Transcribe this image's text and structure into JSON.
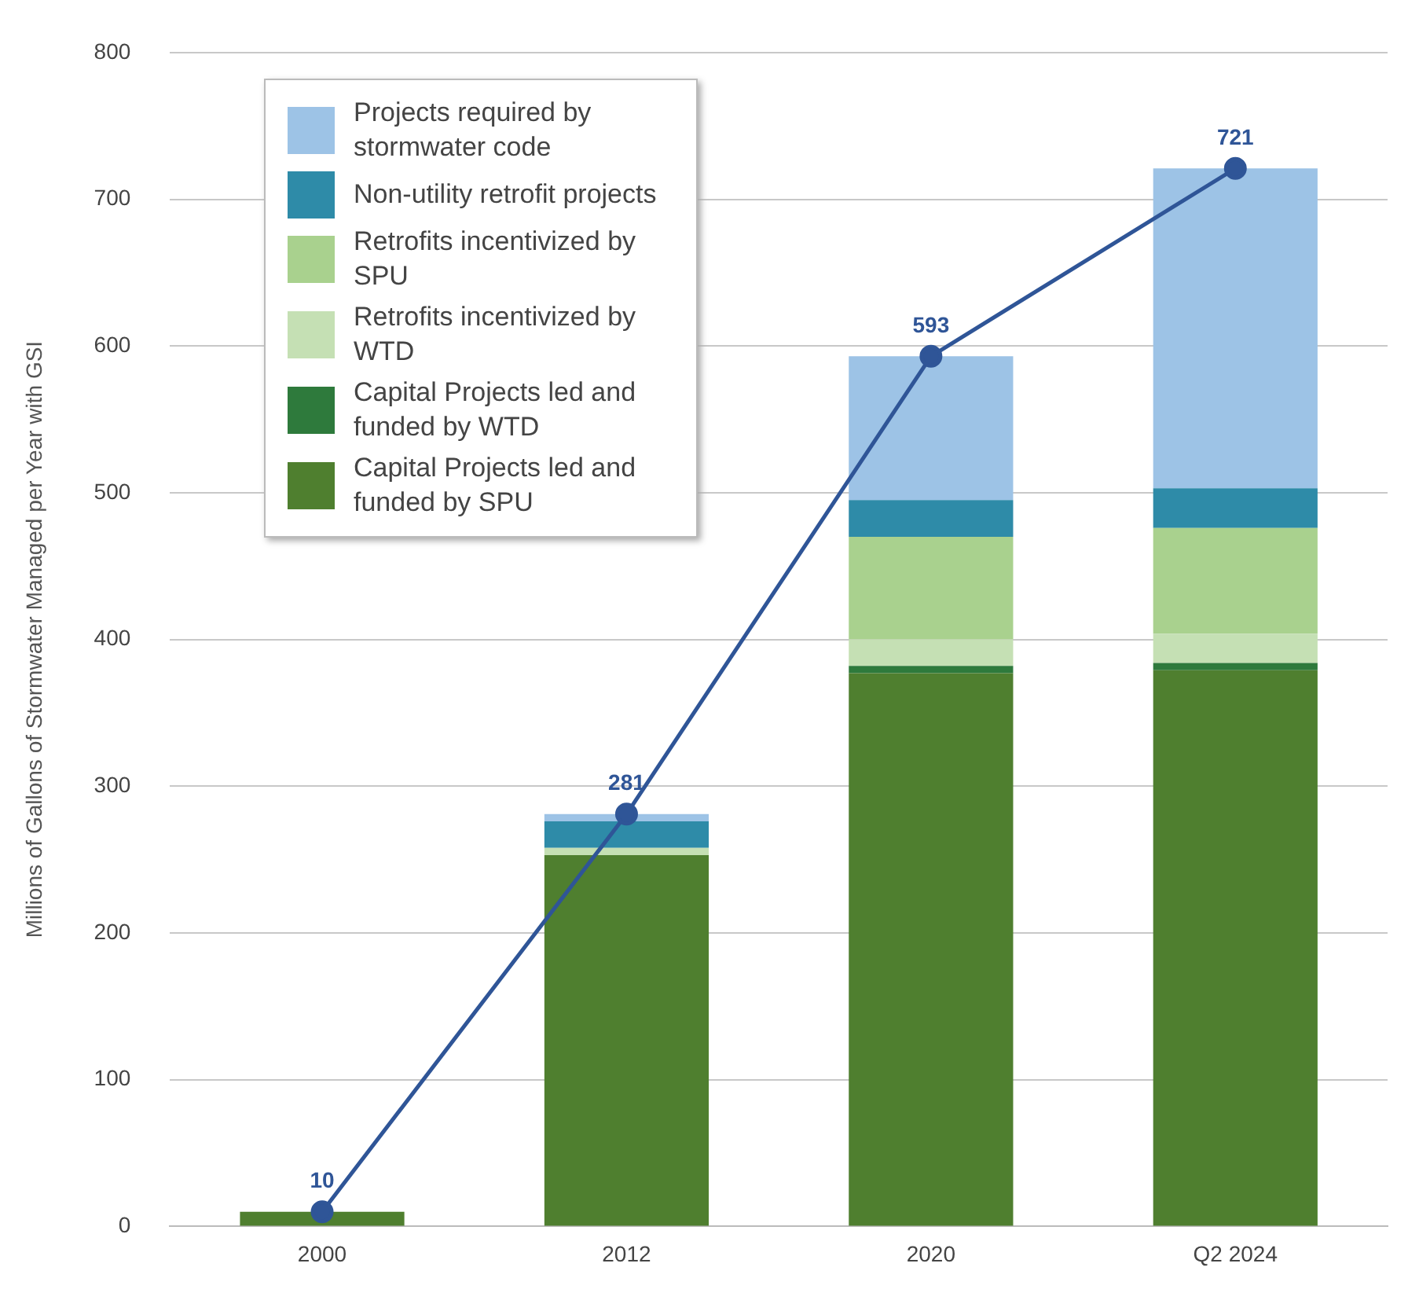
{
  "chart_data": {
    "type": "bar",
    "stacked": true,
    "ylabel": "Millions of Gallons of Stormwater Managed per Year with GSI",
    "categories": [
      "2000",
      "2012",
      "2020",
      "Q2 2024"
    ],
    "ylim": [
      0,
      800
    ],
    "yticks": [
      0,
      100,
      200,
      300,
      400,
      500,
      600,
      700,
      800
    ],
    "grid": "y",
    "legend": "top left",
    "series": [
      {
        "name": "Capital Projects led and funded by SPU",
        "color": "#4f7f2f",
        "values": [
          10,
          253,
          377,
          379
        ]
      },
      {
        "name": "Capital Projects led and funded by WTD",
        "color": "#2e7a3c",
        "values": [
          0,
          0,
          5,
          5
        ]
      },
      {
        "name": "Retrofits incentivized by WTD",
        "color": "#c5e0b4",
        "values": [
          0,
          5,
          18,
          20
        ]
      },
      {
        "name": "Retrofits incentivized by SPU",
        "color": "#a9d18e",
        "values": [
          0,
          0,
          70,
          72
        ]
      },
      {
        "name": "Non-utility retrofit projects",
        "color": "#2e8ba8",
        "values": [
          0,
          18,
          25,
          27
        ]
      },
      {
        "name": "Projects required by stormwater code",
        "color": "#9dc3e6",
        "values": [
          0,
          5,
          98,
          218
        ]
      },
      {
        "type": "line",
        "color": "#2f5597",
        "marker": "circle",
        "values": [
          10,
          281,
          593,
          721
        ],
        "value_labels": [
          "10",
          "281",
          "593",
          "721"
        ]
      }
    ]
  }
}
